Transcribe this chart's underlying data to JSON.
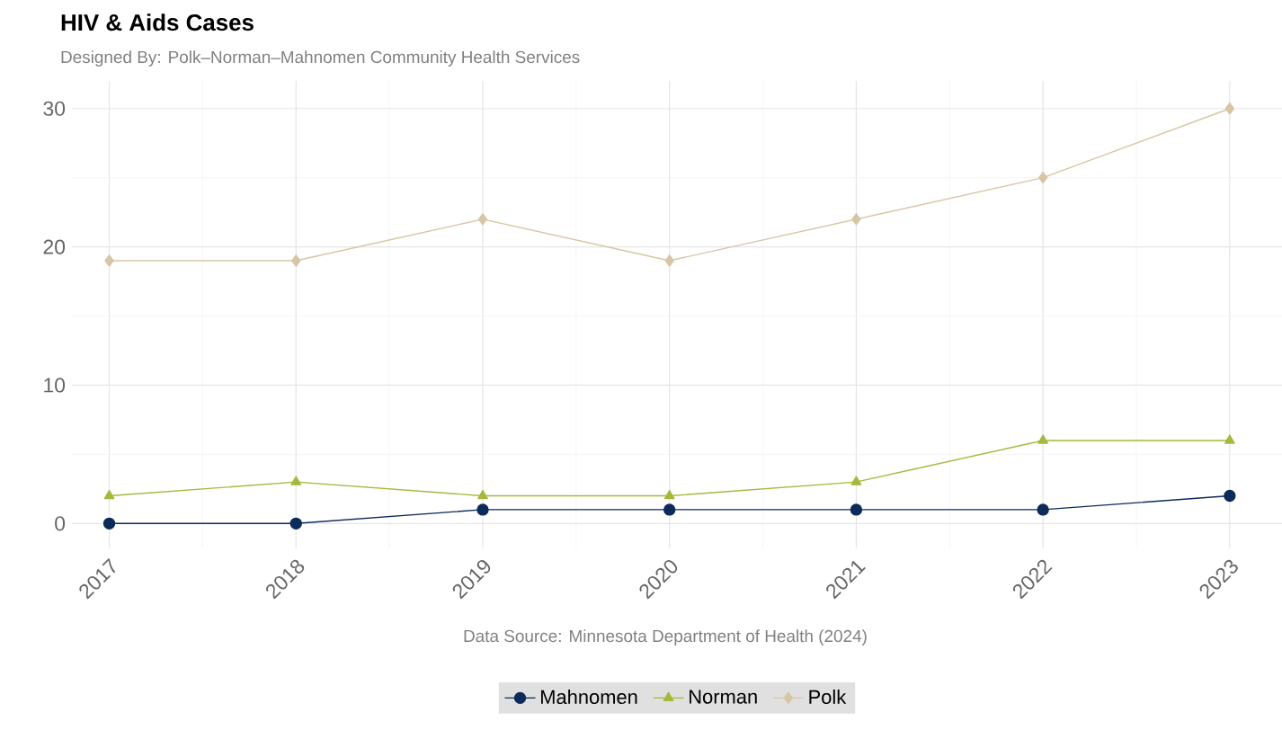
{
  "chart_data": {
    "type": "line",
    "title": "HIV & Aids Cases",
    "subtitle": "Designed By: Polk–Norman–Mahnomen Community Health Services",
    "x": [
      2017,
      2018,
      2019,
      2020,
      2021,
      2022,
      2023
    ],
    "series": [
      {
        "name": "Mahnomen",
        "color": "#0d2b5a",
        "marker": "circle",
        "values": [
          0,
          0,
          1,
          1,
          1,
          1,
          2
        ]
      },
      {
        "name": "Norman",
        "color": "#a6b83e",
        "marker": "triangle",
        "values": [
          2,
          3,
          2,
          2,
          3,
          6,
          6
        ]
      },
      {
        "name": "Polk",
        "color": "#d6c6a6",
        "marker": "diamond",
        "values": [
          19,
          19,
          22,
          19,
          22,
          25,
          30
        ]
      }
    ],
    "xlim": [
      2016.8,
      2023.28
    ],
    "ylim": [
      -1.8,
      32
    ],
    "xticks": [
      2017,
      2018,
      2019,
      2020,
      2021,
      2022,
      2023
    ],
    "yticks": [
      0,
      10,
      20,
      30
    ],
    "grid": true,
    "legend": "bottom",
    "annotations": [
      "Data Source: Minnesota Department of Health (2024)"
    ]
  }
}
